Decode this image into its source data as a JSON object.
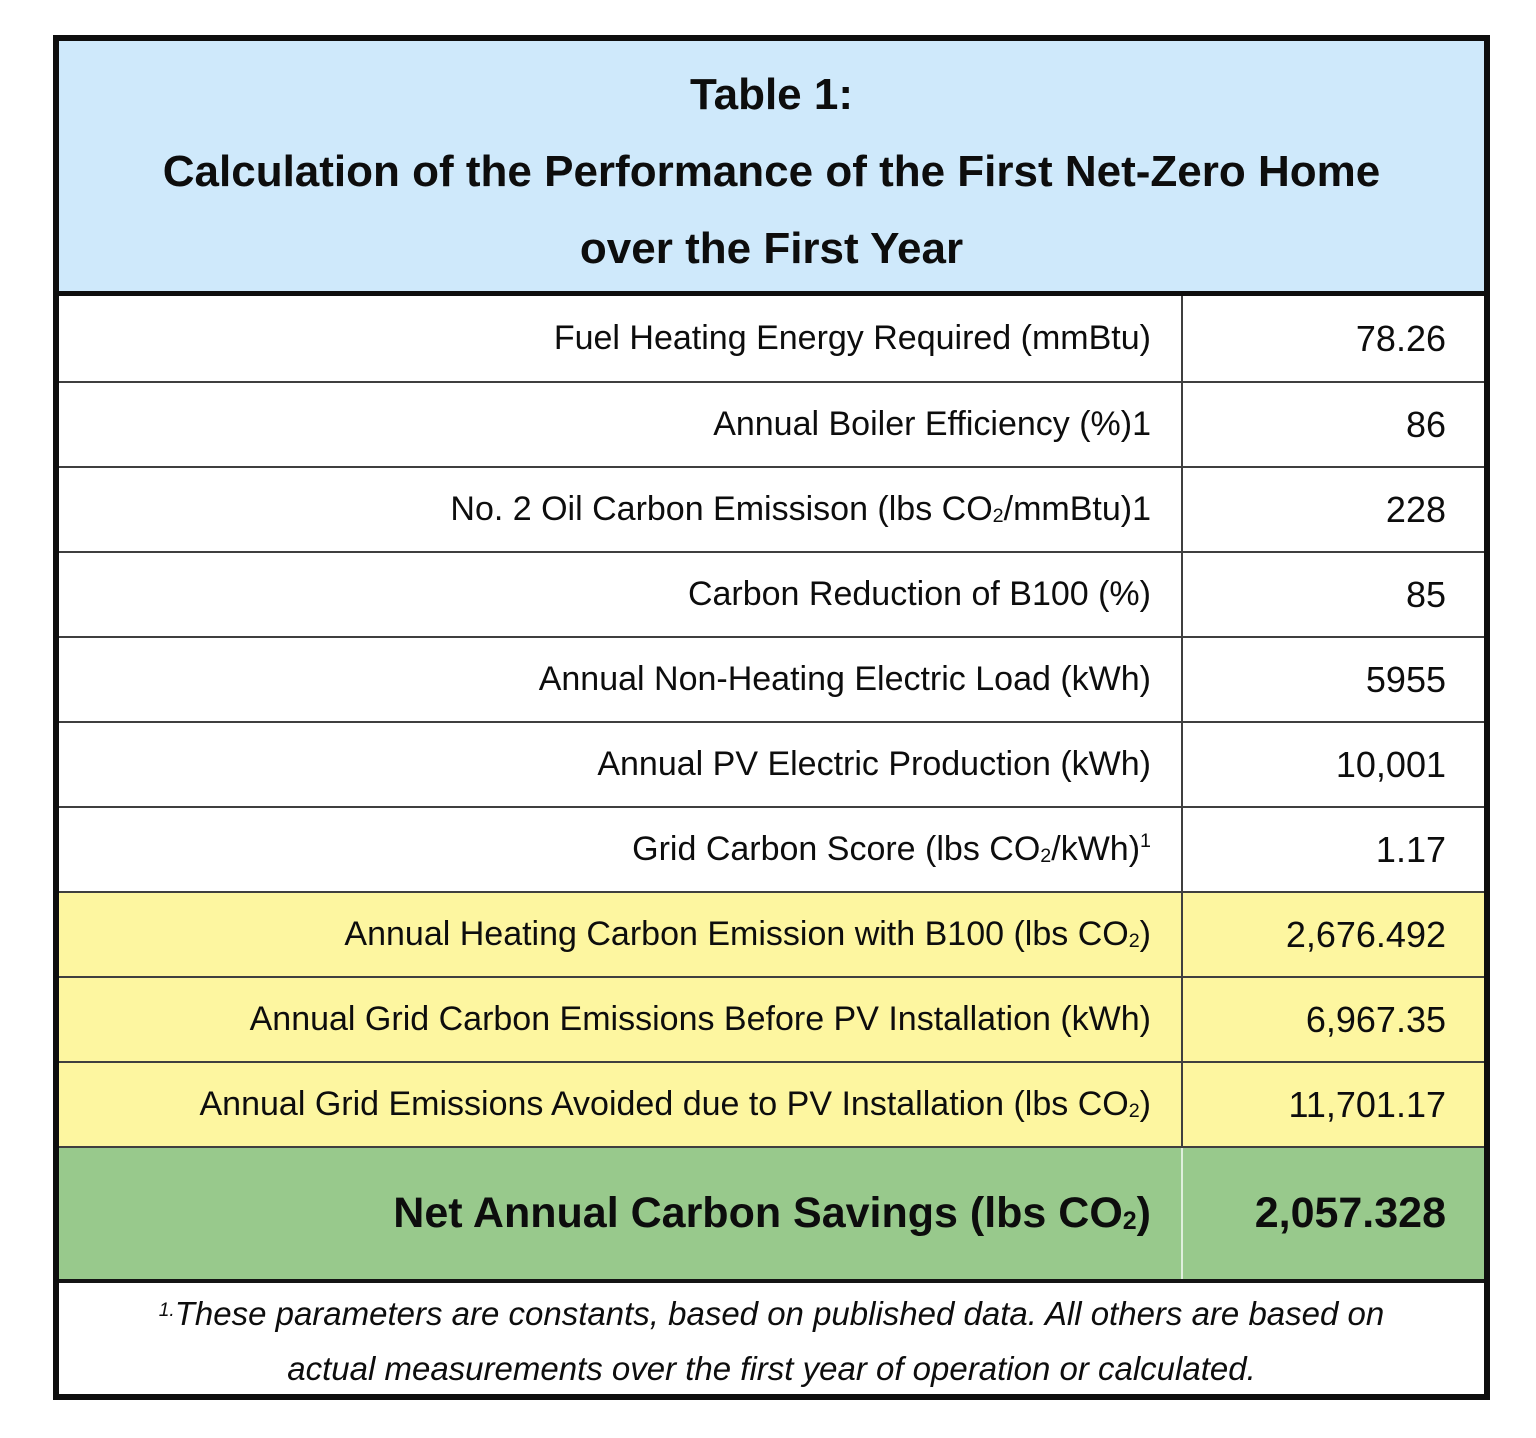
{
  "table": {
    "title_lines": [
      "Table 1:",
      "Calculation of the Performance of the First Net-Zero Home",
      "over the First Year"
    ],
    "rows": [
      {
        "bg": "white",
        "label_parts": [
          {
            "t": "Fuel Heating Energy Required (mmBtu)"
          }
        ],
        "value": "78.26"
      },
      {
        "bg": "white",
        "label_parts": [
          {
            "t": "Annual Boiler Efficiency (%)1"
          }
        ],
        "value": "86"
      },
      {
        "bg": "white",
        "label_parts": [
          {
            "t": "No. 2 Oil Carbon Emissison (lbs CO"
          },
          {
            "t": "2",
            "s": "sub"
          },
          {
            "t": "/mmBtu)1"
          }
        ],
        "value": "228"
      },
      {
        "bg": "white",
        "label_parts": [
          {
            "t": "Carbon Reduction of B100 (%)"
          }
        ],
        "value": "85"
      },
      {
        "bg": "white",
        "label_parts": [
          {
            "t": "Annual Non-Heating Electric Load (kWh)"
          }
        ],
        "value": "5955"
      },
      {
        "bg": "white",
        "label_parts": [
          {
            "t": "Annual PV Electric Production (kWh)"
          }
        ],
        "value": "10,001"
      },
      {
        "bg": "white",
        "label_parts": [
          {
            "t": "Grid Carbon Score (lbs CO"
          },
          {
            "t": "2",
            "s": "sub"
          },
          {
            "t": "/kWh)"
          },
          {
            "t": "1",
            "s": "sup"
          }
        ],
        "value": "1.17"
      },
      {
        "bg": "yellow",
        "label_parts": [
          {
            "t": "Annual Heating Carbon Emission with B100 (lbs CO"
          },
          {
            "t": "2",
            "s": "sub"
          },
          {
            "t": ")"
          }
        ],
        "value": "2,676.492"
      },
      {
        "bg": "yellow",
        "label_parts": [
          {
            "t": "Annual Grid Carbon Emissions Before PV Installation (kWh)"
          }
        ],
        "value": "6,967.35"
      },
      {
        "bg": "yellow",
        "label_parts": [
          {
            "t": "Annual Grid Emissions Avoided due to PV Installation (lbs CO"
          },
          {
            "t": "2",
            "s": "sub"
          },
          {
            "t": ")"
          }
        ],
        "value": "11,701.17"
      },
      {
        "bg": "green",
        "emphasis": true,
        "label_parts": [
          {
            "t": "Net Annual Carbon Savings (lbs CO"
          },
          {
            "t": "2",
            "s": "sub"
          },
          {
            "t": ")"
          }
        ],
        "value": "2,057.328"
      }
    ],
    "footnote_lines": [
      [
        {
          "t": "1.",
          "s": "sup"
        },
        {
          "t": "These parameters are constants, based on published data. All others are based on"
        }
      ],
      [
        {
          "t": "actual measurements over the first year of operation or calculated."
        }
      ]
    ],
    "colors": {
      "header_bg": "#cfe9fb",
      "highlight_bg": "#fdf6a0",
      "total_bg": "#98c98c",
      "border": "#0e0e0e",
      "grid_line": "#3f3f3f"
    }
  }
}
